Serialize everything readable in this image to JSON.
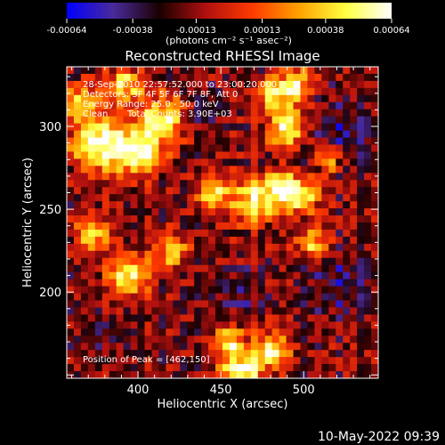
{
  "chart_data": {
    "type": "heatmap",
    "title": "Reconstructed RHESSI Image",
    "xlabel": "Heliocentric X (arcsec)",
    "ylabel": "Heliocentric Y (arcsec)",
    "xlim": [
      357,
      545
    ],
    "ylim": [
      148,
      336
    ],
    "x_ticks": [
      400,
      450,
      500
    ],
    "y_ticks": [
      200,
      250,
      300
    ],
    "grid": false,
    "colorbar": {
      "units": "(photons cm⁻² s⁻¹ asec⁻²)",
      "ticks": [
        "-0.00064",
        "-0.00038",
        "-0.00013",
        "0.00013",
        "0.00038",
        "0.00064"
      ],
      "range": [
        -0.00064,
        0.00064
      ],
      "colors": [
        "#0000ff",
        "#4a2a9a",
        "#1a0000",
        "#b01010",
        "#ff3a00",
        "#ffa000",
        "#ffff40",
        "#ffffff"
      ]
    },
    "annotations": {
      "time_range": "28-Sep-2010 22:57:52.000 to 23:00:20.000",
      "detectors": "Detectors: 3F 4F 5F 6F 7F 8F, Att 0",
      "energy_range": "Energy Range: 25.0 - 50.0 keV",
      "method": "Clean",
      "total_counts": "Total Counts: 3.90E+03",
      "peak_position": "Position of Peak = [462,150]"
    },
    "peak": {
      "x": 462,
      "y": 150
    },
    "image_grid": {
      "cols": 44,
      "rows": 44,
      "hotspots": [
        {
          "x": 375,
          "y": 290,
          "r": 16,
          "v": 0.00058
        },
        {
          "x": 400,
          "y": 285,
          "r": 14,
          "v": 0.00062
        },
        {
          "x": 415,
          "y": 305,
          "r": 14,
          "v": 0.00048
        },
        {
          "x": 392,
          "y": 325,
          "r": 11,
          "v": 0.0004
        },
        {
          "x": 365,
          "y": 315,
          "r": 10,
          "v": 0.00035
        },
        {
          "x": 445,
          "y": 260,
          "r": 10,
          "v": 0.00042
        },
        {
          "x": 470,
          "y": 255,
          "r": 13,
          "v": 0.0005
        },
        {
          "x": 487,
          "y": 262,
          "r": 10,
          "v": 0.00052
        },
        {
          "x": 500,
          "y": 258,
          "r": 10,
          "v": 0.00048
        },
        {
          "x": 490,
          "y": 300,
          "r": 12,
          "v": 0.00055
        },
        {
          "x": 495,
          "y": 325,
          "r": 10,
          "v": 0.0005
        },
        {
          "x": 480,
          "y": 320,
          "r": 8,
          "v": 0.00042
        },
        {
          "x": 395,
          "y": 210,
          "r": 12,
          "v": 0.00052
        },
        {
          "x": 372,
          "y": 235,
          "r": 10,
          "v": 0.0004
        },
        {
          "x": 420,
          "y": 225,
          "r": 10,
          "v": 0.00038
        },
        {
          "x": 462,
          "y": 150,
          "r": 12,
          "v": 0.00064
        },
        {
          "x": 480,
          "y": 165,
          "r": 11,
          "v": 0.00048
        },
        {
          "x": 455,
          "y": 170,
          "r": 9,
          "v": 0.00042
        },
        {
          "x": 505,
          "y": 230,
          "r": 9,
          "v": 0.0004
        },
        {
          "x": 515,
          "y": 280,
          "r": 8,
          "v": 0.00036
        }
      ],
      "coldspots": [
        {
          "x": 525,
          "y": 295,
          "r": 22,
          "v": -0.0004
        },
        {
          "x": 525,
          "y": 205,
          "r": 20,
          "v": -0.00038
        },
        {
          "x": 460,
          "y": 200,
          "r": 14,
          "v": -0.00032
        },
        {
          "x": 440,
          "y": 310,
          "r": 12,
          "v": -0.0003
        },
        {
          "x": 380,
          "y": 175,
          "r": 12,
          "v": -0.00028
        }
      ]
    }
  },
  "footer": {
    "timestamp": "10-May-2022 09:39"
  }
}
